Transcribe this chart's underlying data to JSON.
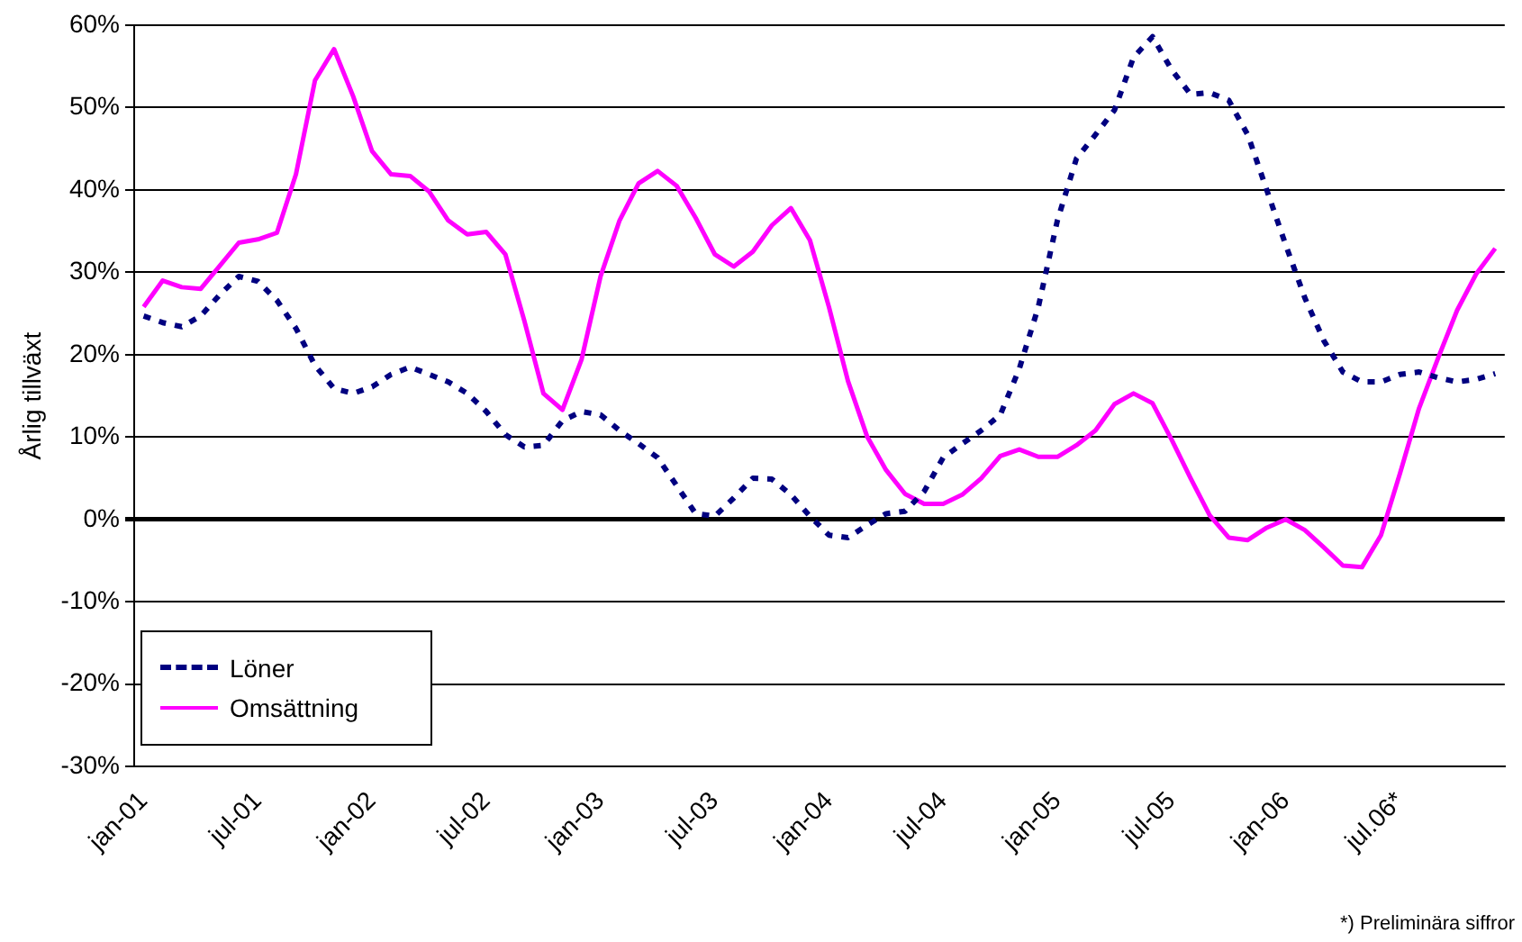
{
  "chart_data": {
    "type": "line",
    "ylabel": "Årlig tillväxt",
    "categories": [
      "jan-01",
      null,
      null,
      null,
      null,
      null,
      "jul-01",
      null,
      null,
      null,
      null,
      null,
      "jan-02",
      null,
      null,
      null,
      null,
      null,
      "jul-02",
      null,
      null,
      null,
      null,
      null,
      "jan-03",
      null,
      null,
      null,
      null,
      null,
      "jul-03",
      null,
      null,
      null,
      null,
      null,
      "jan-04",
      null,
      null,
      null,
      null,
      null,
      "jul-04",
      null,
      null,
      null,
      null,
      null,
      "jan-05",
      null,
      null,
      null,
      null,
      null,
      "jul-05",
      null,
      null,
      null,
      null,
      null,
      "jan-06",
      null,
      null,
      null,
      null,
      null,
      "jul.06*",
      null,
      null,
      null,
      null,
      null
    ],
    "series": [
      {
        "name": "Löner",
        "color": "#000080",
        "line_style": "dashed",
        "values": [
          24.7,
          23.9,
          23.4,
          24.7,
          27.3,
          29.5,
          28.9,
          26.6,
          23.2,
          18.7,
          15.9,
          15.3,
          16.1,
          17.6,
          18.5,
          17.6,
          16.7,
          15.3,
          13.1,
          10.3,
          8.8,
          9.0,
          12.0,
          13.1,
          12.7,
          10.8,
          9.2,
          7.5,
          4.1,
          0.7,
          0.4,
          2.6,
          5.0,
          4.9,
          3.0,
          0.4,
          -1.9,
          -2.2,
          -0.7,
          0.7,
          1.0,
          3.4,
          7.5,
          9.2,
          10.8,
          12.7,
          18.3,
          25.8,
          36.3,
          43.8,
          46.7,
          49.7,
          56.1,
          58.6,
          54.6,
          51.6,
          51.8,
          50.9,
          46.7,
          40.0,
          33.3,
          26.9,
          21.7,
          17.9,
          16.7,
          16.7,
          17.6,
          17.9,
          17.2,
          16.7,
          17.0,
          17.7
        ]
      },
      {
        "name": "Omsättning",
        "color": "#ff00ff",
        "line_style": "solid",
        "values": [
          25.8,
          29.0,
          28.2,
          28.0,
          30.8,
          33.6,
          34.0,
          34.8,
          41.9,
          53.3,
          57.1,
          51.4,
          44.7,
          41.9,
          41.7,
          39.8,
          36.3,
          34.6,
          34.9,
          32.2,
          24.1,
          15.3,
          13.3,
          19.4,
          29.5,
          36.3,
          40.8,
          42.3,
          40.5,
          36.6,
          32.2,
          30.7,
          32.5,
          35.7,
          37.8,
          33.9,
          25.8,
          16.8,
          10.1,
          6.0,
          3.1,
          1.9,
          1.9,
          3.0,
          5.0,
          7.7,
          8.5,
          7.6,
          7.6,
          9.0,
          10.8,
          14.0,
          15.3,
          14.1,
          9.7,
          5.0,
          0.5,
          -2.2,
          -2.5,
          -1.0,
          0.0,
          -1.3,
          -3.4,
          -5.6,
          -5.8,
          -1.9,
          5.6,
          13.5,
          19.6,
          25.4,
          29.8,
          32.9
        ]
      }
    ],
    "ylim": [
      -30,
      60
    ],
    "yticks": [
      {
        "value": -30,
        "label": "-30%"
      },
      {
        "value": -20,
        "label": "-20%"
      },
      {
        "value": -10,
        "label": "-10%"
      },
      {
        "value": 0,
        "label": "0%"
      },
      {
        "value": 10,
        "label": "10%"
      },
      {
        "value": 20,
        "label": "20%"
      },
      {
        "value": 30,
        "label": "30%"
      },
      {
        "value": 40,
        "label": "40%"
      },
      {
        "value": 50,
        "label": "50%"
      },
      {
        "value": 60,
        "label": "60%"
      }
    ],
    "grid": "y",
    "legend": "bottom left",
    "marker": "none",
    "annotations": [
      "*) Preliminära siffror"
    ]
  }
}
